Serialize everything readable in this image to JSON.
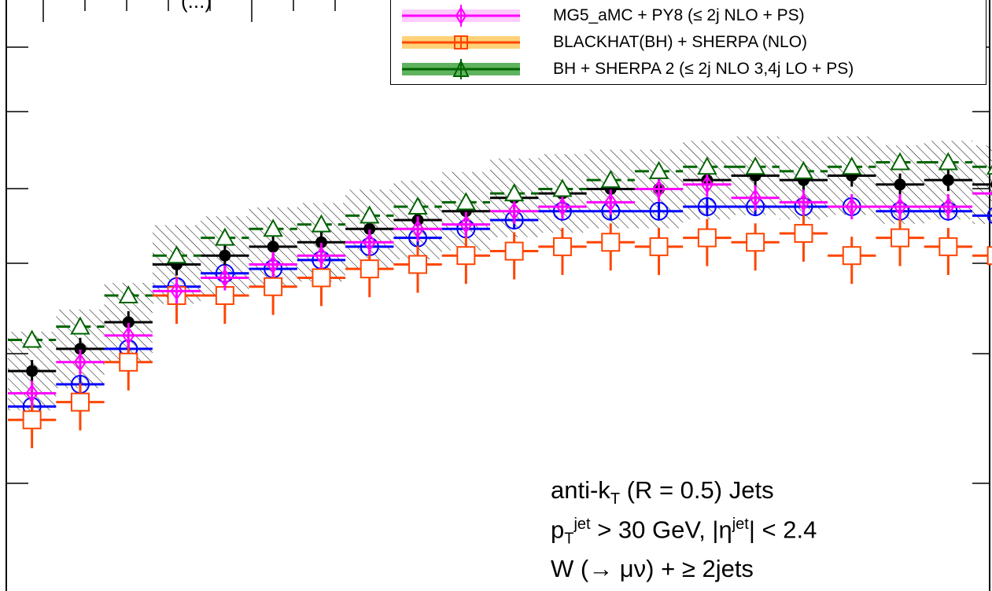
{
  "top_partial_label": "(...)",
  "legend": [
    {
      "label": "MG5_aMC + PY8 (≤ 2j NLO + PS)",
      "color": "#ff00ff",
      "band": "#ffccff",
      "marker": "diamond"
    },
    {
      "label": "BLACKHAT(BH) + SHERPA (NLO)",
      "color": "#ff4500",
      "band": "#ffd27a",
      "marker": "square-plus"
    },
    {
      "label": "BH + SHERPA 2 (≤ 2j NLO 3,4j LO + PS)",
      "color": "#006400",
      "band": "#5fb35f",
      "marker": "triangle"
    }
  ],
  "annotation": {
    "line1_pre": "anti-k",
    "line1_sub": "T",
    "line1_post": " (R = 0.5) Jets",
    "line2_p": "p",
    "line2_sub": "T",
    "line2_sup": "jet",
    "line2_mid": " > 30 GeV, |η",
    "line2_sup2": "jet",
    "line2_post": "| < 2.4",
    "line3": "W (→ μν) + ≥ 2jets"
  },
  "chart_data": {
    "type": "line",
    "x": [
      1,
      2,
      3,
      4,
      5,
      6,
      7,
      8,
      9,
      10,
      11,
      12,
      13,
      14,
      15,
      16,
      17,
      18,
      19,
      20,
      21
    ],
    "ylim": [
      0,
      100
    ],
    "series": [
      {
        "name": "",
        "color": "#000000",
        "marker": "filled-circle",
        "hatched_band": true,
        "values": [
          46,
          51,
          57,
          70,
          72,
          74,
          75,
          78,
          80,
          82,
          85,
          86,
          87,
          87,
          89,
          90,
          89,
          90,
          88,
          89,
          88
        ]
      },
      {
        "name": "",
        "color": "#0000ff",
        "marker": "open-circle",
        "values": [
          38,
          43,
          51,
          65,
          68,
          69,
          71,
          74,
          76,
          78,
          80,
          82,
          82,
          82,
          83,
          83,
          83,
          83,
          82,
          82,
          81
        ]
      },
      {
        "name": "MG5_aMC + PY8 (≤ 2j NLO + PS)",
        "color": "#ff00ff",
        "marker": "diamond",
        "values": [
          41,
          48,
          54,
          64,
          67,
          70,
          72,
          75,
          78,
          79,
          82,
          83,
          84,
          87,
          88,
          85,
          84,
          83,
          83,
          83,
          86
        ]
      },
      {
        "name": "BLACKHAT(BH) + SHERPA (NLO)",
        "color": "#ff4500",
        "marker": "square-plus",
        "values": [
          35,
          39,
          48,
          63,
          63,
          65,
          67,
          69,
          70,
          72,
          73,
          74,
          75,
          74,
          76,
          75,
          77,
          72,
          76,
          74,
          72
        ]
      },
      {
        "name": "BH + SHERPA 2 (≤ 2j NLO 3,4j LO + PS)",
        "color": "#006400",
        "marker": "triangle",
        "values": [
          53,
          56,
          63,
          72,
          76,
          78,
          79,
          81,
          83,
          84,
          86,
          87,
          89,
          91,
          92,
          92,
          91,
          92,
          93,
          93,
          92
        ]
      }
    ]
  }
}
